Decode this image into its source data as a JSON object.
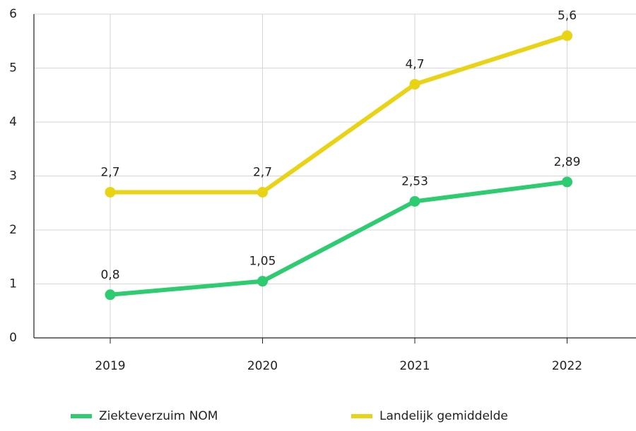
{
  "chart_data": {
    "type": "line",
    "categories": [
      "2019",
      "2020",
      "2021",
      "2022"
    ],
    "series": [
      {
        "name": "Ziekteverzuim NOM",
        "color": "#2ecc71",
        "values": [
          0.8,
          1.05,
          2.53,
          2.89
        ],
        "value_labels": [
          "0,8",
          "1,05",
          "2,53",
          "2,89"
        ]
      },
      {
        "name": "Landelijk gemiddelde",
        "color": "#e8d314",
        "values": [
          2.7,
          2.7,
          4.7,
          5.6
        ],
        "value_labels": [
          "2,7",
          "2,7",
          "4,7",
          "5,6"
        ]
      }
    ],
    "ylim": [
      0,
      6
    ],
    "yticks": [
      0,
      1,
      2,
      3,
      4,
      5,
      6
    ],
    "grid": true,
    "legend": "bottom"
  }
}
